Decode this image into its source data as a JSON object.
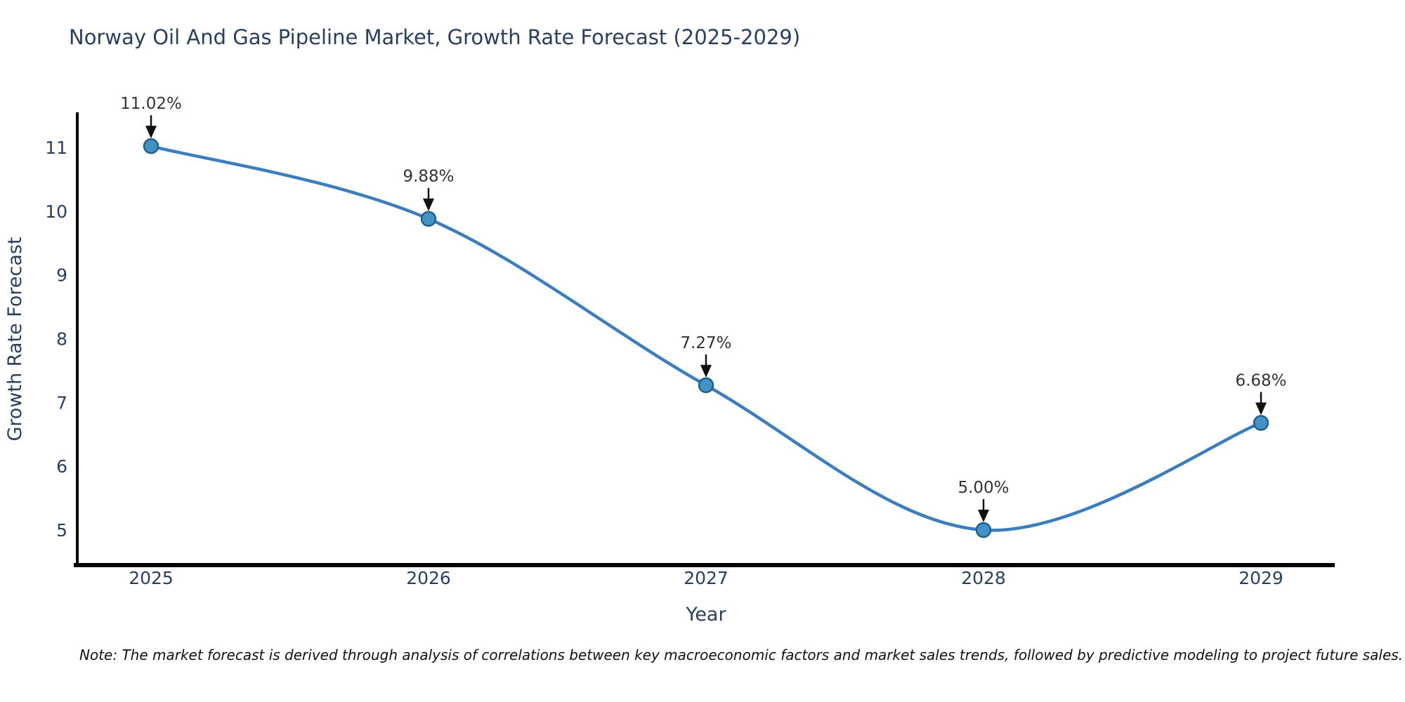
{
  "chart_data": {
    "type": "line",
    "title": "Norway Oil And Gas Pipeline Market, Growth Rate Forecast (2025-2029)",
    "categories": [
      "2025",
      "2026",
      "2027",
      "2028",
      "2029"
    ],
    "values": [
      11.02,
      9.88,
      7.27,
      5.0,
      6.68
    ],
    "point_labels": [
      "11.02%",
      "9.88%",
      "7.27%",
      "5.00%",
      "6.68%"
    ],
    "xlabel": "Year",
    "ylabel": "Growth Rate Forecast",
    "yticks": [
      5,
      6,
      7,
      8,
      9,
      10,
      11
    ],
    "ylim": [
      4.45,
      11.6
    ],
    "grid": false,
    "legend": "none",
    "line_shape": "spline",
    "annotations": "value labels with down arrows above each point"
  },
  "note": "Note: The market forecast is derived through analysis of correlations between key macroeconomic factors and market sales trends, followed by predictive modeling to project future sales.",
  "colors": {
    "background": "#ffffff",
    "title_text": "#2a3f5f",
    "tick_text": "#2a3f5f",
    "axis_line": "#000000",
    "series_line": "#3a7ebf",
    "marker_fill": "#4292c6",
    "marker_edge": "#20608f",
    "annotation_text": "#333333",
    "arrow": "#111111",
    "note_text": "#111111"
  }
}
